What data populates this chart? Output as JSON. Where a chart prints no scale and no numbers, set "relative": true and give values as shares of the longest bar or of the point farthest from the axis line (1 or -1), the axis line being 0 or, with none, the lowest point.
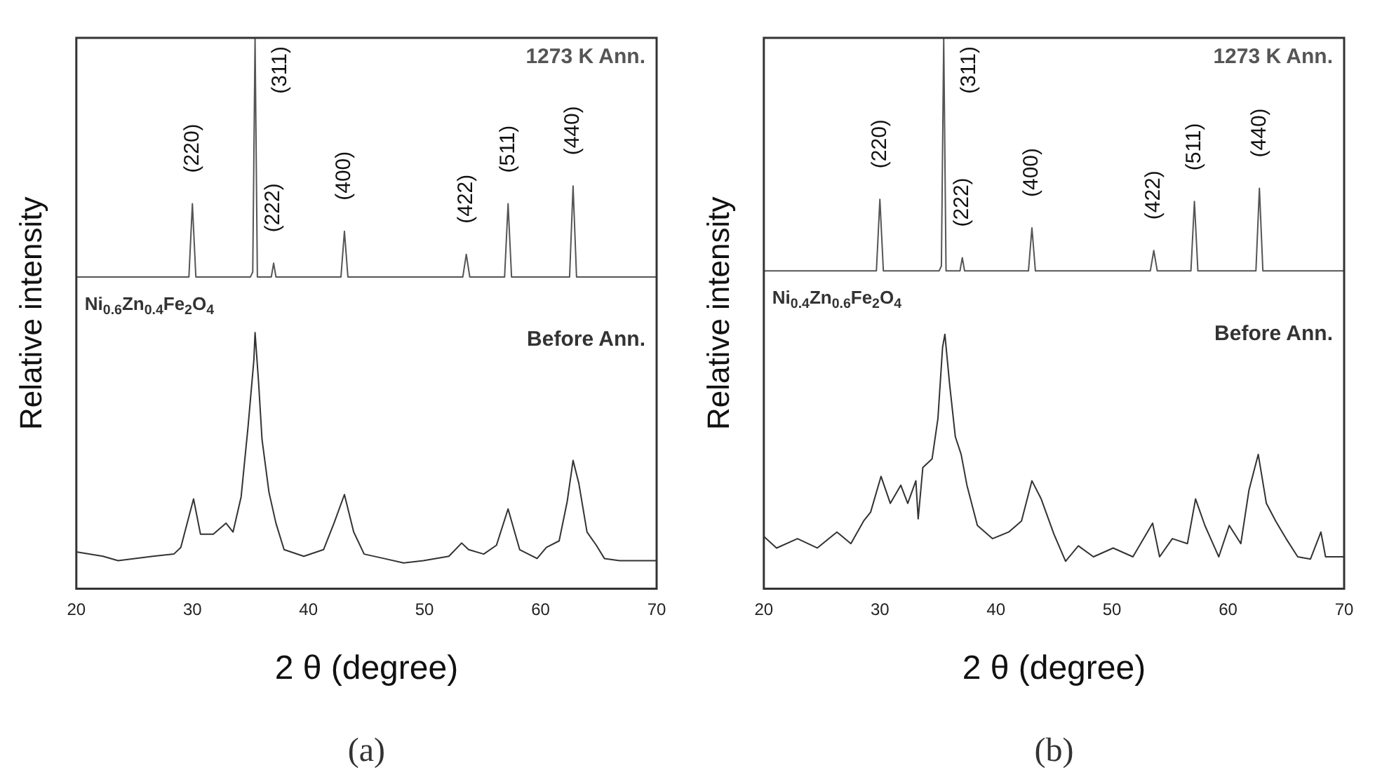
{
  "chart_data": [
    {
      "type": "line",
      "relative": true,
      "xlabel": "2 θ (degree)",
      "ylabel": "Relative intensity",
      "xlim": [
        20,
        70
      ],
      "xticks": [
        20,
        30,
        40,
        50,
        60,
        70
      ],
      "legend": false,
      "marker": "none",
      "line_style": "solid",
      "series": [
        {
          "name": "1273 K Ann.",
          "color": "#555555",
          "x": [
            20,
            29.7,
            30.0,
            30.3,
            35.0,
            35.2,
            35.4,
            35.6,
            36.8,
            37.0,
            37.2,
            42.8,
            43.1,
            43.4,
            53.3,
            53.6,
            53.9,
            56.9,
            57.2,
            57.5,
            62.5,
            62.8,
            63.1,
            70
          ],
          "values": [
            0.566,
            0.566,
            0.699,
            0.566,
            0.566,
            0.575,
            1.0,
            0.566,
            0.566,
            0.591,
            0.566,
            0.566,
            0.649,
            0.566,
            0.566,
            0.607,
            0.566,
            0.566,
            0.699,
            0.566,
            0.566,
            0.731,
            0.566,
            0.566
          ]
        },
        {
          "name": "Before Ann.",
          "color": "#333333",
          "x": [
            20.0,
            22.3,
            23.6,
            26.6,
            28.4,
            29.0,
            30.1,
            30.7,
            31.8,
            32.9,
            33.5,
            34.2,
            34.8,
            35.3,
            35.4,
            35.7,
            36.0,
            36.6,
            37.2,
            37.9,
            39.6,
            41.3,
            42.2,
            43.1,
            43.9,
            44.8,
            46.5,
            48.2,
            49.9,
            52.1,
            53.2,
            53.8,
            55.1,
            56.2,
            57.2,
            58.2,
            59.7,
            60.5,
            61.6,
            62.3,
            62.8,
            63.3,
            64.0,
            64.8,
            65.5,
            66.8,
            68.5,
            70
          ],
          "values": [
            0.067,
            0.059,
            0.051,
            0.059,
            0.063,
            0.075,
            0.163,
            0.099,
            0.099,
            0.119,
            0.103,
            0.167,
            0.295,
            0.416,
            0.465,
            0.376,
            0.271,
            0.175,
            0.119,
            0.071,
            0.059,
            0.071,
            0.119,
            0.171,
            0.103,
            0.063,
            0.055,
            0.047,
            0.051,
            0.059,
            0.083,
            0.071,
            0.063,
            0.079,
            0.145,
            0.071,
            0.055,
            0.075,
            0.087,
            0.159,
            0.233,
            0.191,
            0.103,
            0.079,
            0.055,
            0.051,
            0.051,
            0.051
          ]
        }
      ],
      "annotations": [
        "Ni$_{0.6}$Zn$_{0.4}$Fe$_{2}$O$_{4}$",
        "(a)",
        {
          "text": "(220)",
          "x": 30.0,
          "y": 0.699
        },
        {
          "text": "(311)",
          "x": 35.4,
          "y": 1.0
        },
        {
          "text": "(222)",
          "x": 37.0,
          "y": 0.591
        },
        {
          "text": "(400)",
          "x": 43.1,
          "y": 0.649
        },
        {
          "text": "(422)",
          "x": 53.6,
          "y": 0.607
        },
        {
          "text": "(511)",
          "x": 57.2,
          "y": 0.699
        },
        {
          "text": "(440)",
          "x": 62.8,
          "y": 0.731
        }
      ]
    },
    {
      "type": "line",
      "relative": true,
      "xlabel": "2 θ (degree)",
      "ylabel": "Relative intensity",
      "xlim": [
        20,
        70
      ],
      "xticks": [
        20,
        30,
        40,
        50,
        60,
        70
      ],
      "legend": false,
      "marker": "none",
      "line_style": "solid",
      "series": [
        {
          "name": "1273 K Ann.",
          "color": "#555555",
          "x": [
            20,
            29.7,
            30.0,
            30.3,
            35.1,
            35.3,
            35.5,
            35.7,
            36.9,
            37.1,
            37.3,
            42.8,
            43.1,
            43.4,
            53.3,
            53.6,
            53.9,
            56.8,
            57.1,
            57.4,
            62.4,
            62.7,
            63.0,
            70
          ],
          "values": [
            0.577,
            0.577,
            0.707,
            0.577,
            0.577,
            0.586,
            1.0,
            0.577,
            0.577,
            0.601,
            0.577,
            0.577,
            0.655,
            0.577,
            0.577,
            0.614,
            0.577,
            0.577,
            0.703,
            0.577,
            0.577,
            0.727,
            0.577,
            0.577
          ]
        },
        {
          "name": "Before Ann.",
          "color": "#333333",
          "x": [
            20.0,
            21.1,
            22.9,
            24.6,
            26.3,
            27.5,
            28.6,
            29.2,
            30.1,
            30.9,
            31.8,
            32.4,
            33.1,
            33.3,
            33.7,
            34.5,
            35.0,
            35.4,
            35.6,
            36.0,
            36.5,
            37.0,
            37.5,
            38.4,
            39.7,
            41.1,
            42.2,
            43.1,
            43.9,
            45.0,
            46.0,
            47.1,
            48.4,
            50.1,
            51.8,
            53.5,
            54.1,
            55.2,
            56.5,
            57.2,
            58.0,
            59.2,
            60.1,
            61.1,
            61.8,
            62.6,
            63.3,
            64.1,
            65.0,
            66.0,
            67.1,
            68.0,
            68.4,
            70
          ],
          "values": [
            0.095,
            0.074,
            0.091,
            0.074,
            0.103,
            0.082,
            0.123,
            0.139,
            0.204,
            0.155,
            0.188,
            0.155,
            0.196,
            0.127,
            0.22,
            0.236,
            0.309,
            0.438,
            0.462,
            0.373,
            0.276,
            0.244,
            0.188,
            0.115,
            0.091,
            0.103,
            0.123,
            0.196,
            0.163,
            0.099,
            0.05,
            0.078,
            0.058,
            0.074,
            0.058,
            0.119,
            0.058,
            0.091,
            0.082,
            0.163,
            0.115,
            0.058,
            0.115,
            0.082,
            0.179,
            0.244,
            0.155,
            0.123,
            0.091,
            0.058,
            0.054,
            0.103,
            0.058,
            0.058
          ]
        }
      ],
      "annotations": [
        "Ni$_{0.4}$Zn$_{0.6}$Fe$_{2}$O$_{4}$",
        "(b)",
        {
          "text": "(220)",
          "x": 30.0,
          "y": 0.707
        },
        {
          "text": "(311)",
          "x": 35.5,
          "y": 1.0
        },
        {
          "text": "(222)",
          "x": 37.1,
          "y": 0.601
        },
        {
          "text": "(400)",
          "x": 43.1,
          "y": 0.655
        },
        {
          "text": "(422)",
          "x": 53.6,
          "y": 0.614
        },
        {
          "text": "(511)",
          "x": 57.1,
          "y": 0.703
        },
        {
          "text": "(440)",
          "x": 62.7,
          "y": 0.727
        }
      ]
    }
  ]
}
